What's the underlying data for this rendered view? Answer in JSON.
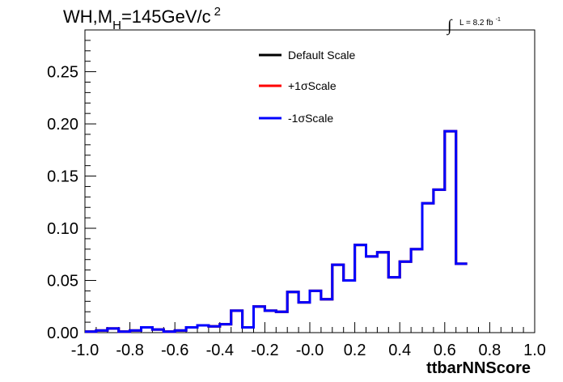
{
  "chart_data": {
    "type": "histogram",
    "title": {
      "prefix": "WH,M",
      "subscript": "H",
      "rest": "=145GeV/c",
      "superscript": "2"
    },
    "luminosity": {
      "integral_symbol": "∫",
      "text": "L = 8.2 fb",
      "superscript": "-1"
    },
    "xlabel": "ttbarNNScore",
    "ylabel": "",
    "xlim": [
      -1.0,
      1.0
    ],
    "ylim": [
      0,
      0.29
    ],
    "x_ticks": [
      "-1.0",
      "-0.8",
      "-0.6",
      "-0.4",
      "-0.2",
      "-0.0",
      "0.2",
      "0.4",
      "0.6",
      "0.8",
      "1.0"
    ],
    "y_ticks": [
      "0.00",
      "0.05",
      "0.10",
      "0.15",
      "0.20",
      "0.25"
    ],
    "bin_edges_start": -1.0,
    "bin_width": 0.05,
    "series": [
      {
        "name": "Default Scale",
        "color": "#000000",
        "values": [
          0.001,
          0.002,
          0.004,
          0.001,
          0.002,
          0.005,
          0.003,
          0.001,
          0.002,
          0.005,
          0.007,
          0.006,
          0.008,
          0.021,
          0.005,
          0.025,
          0.021,
          0.02,
          0.039,
          0.029,
          0.04,
          0.032,
          0.065,
          0.05,
          0.084,
          0.073,
          0.077,
          0.053,
          0.068,
          0.08,
          0.124,
          0.137,
          0.193,
          0.066
        ]
      },
      {
        "name": "+1σScale",
        "color": "#ff0000",
        "values": [
          0.001,
          0.002,
          0.004,
          0.001,
          0.002,
          0.005,
          0.003,
          0.001,
          0.002,
          0.005,
          0.007,
          0.006,
          0.008,
          0.021,
          0.005,
          0.025,
          0.021,
          0.02,
          0.039,
          0.029,
          0.04,
          0.032,
          0.065,
          0.05,
          0.084,
          0.073,
          0.077,
          0.053,
          0.068,
          0.08,
          0.124,
          0.137,
          0.193,
          0.066
        ]
      },
      {
        "name": "-1σScale",
        "color": "#0000ff",
        "values": [
          0.001,
          0.002,
          0.004,
          0.001,
          0.002,
          0.005,
          0.003,
          0.001,
          0.002,
          0.005,
          0.007,
          0.006,
          0.008,
          0.021,
          0.005,
          0.025,
          0.021,
          0.02,
          0.039,
          0.029,
          0.04,
          0.032,
          0.065,
          0.05,
          0.084,
          0.073,
          0.077,
          0.053,
          0.068,
          0.08,
          0.124,
          0.137,
          0.193,
          0.066
        ]
      }
    ],
    "legend": {
      "position": "top-center",
      "entries": [
        "Default Scale",
        "+1σScale",
        "-1σScale"
      ]
    },
    "grid": false
  }
}
